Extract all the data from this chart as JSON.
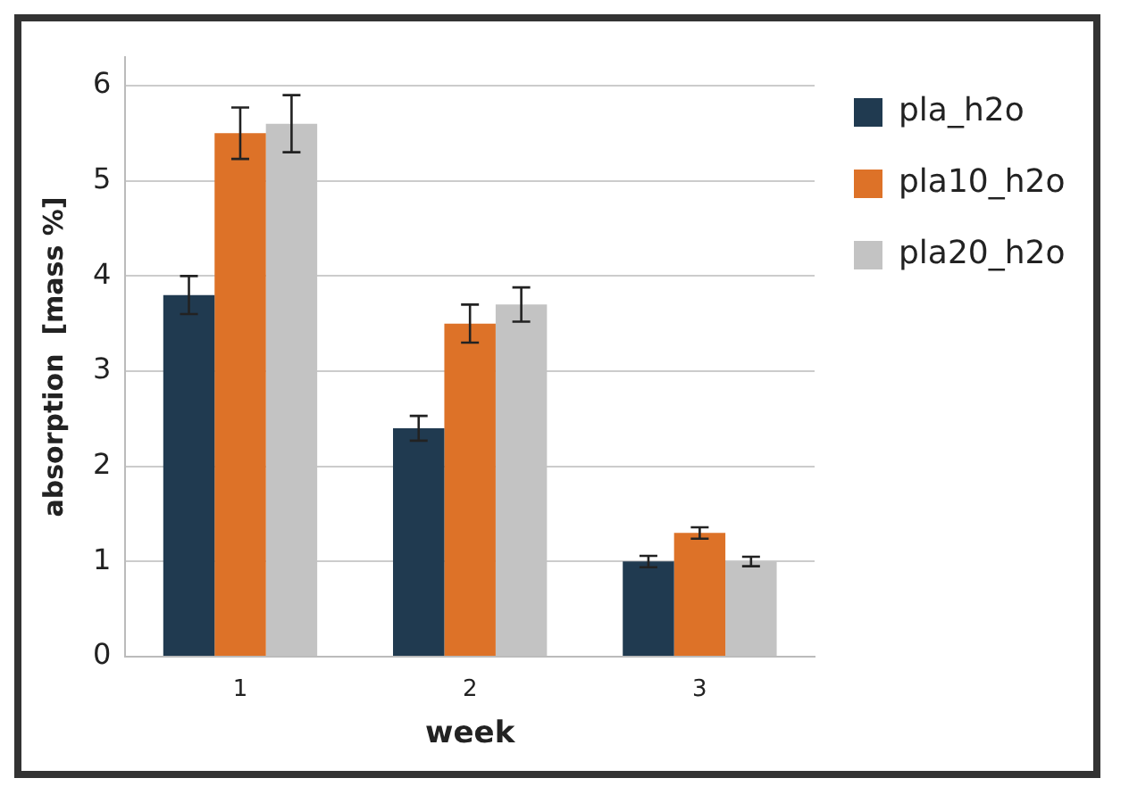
{
  "chart_data": {
    "type": "bar",
    "xlabel": "week",
    "ylabel": "absorption  [mass %]",
    "categories": [
      "1",
      "2",
      "3"
    ],
    "series": [
      {
        "name": "pla_h2o",
        "color": "#203a50",
        "values": [
          3.8,
          2.4,
          1.0
        ],
        "errors": [
          0.2,
          0.13,
          0.06
        ]
      },
      {
        "name": "pla10_h2o",
        "color": "#dd7228",
        "values": [
          5.5,
          3.5,
          1.3
        ],
        "errors": [
          0.27,
          0.2,
          0.06
        ]
      },
      {
        "name": "pla20_h2o",
        "color": "#c3c3c3",
        "values": [
          5.6,
          3.7,
          1.0
        ],
        "errors": [
          0.3,
          0.18,
          0.05
        ]
      }
    ],
    "ylim": [
      0,
      6.3
    ],
    "yticks": [
      0,
      1,
      2,
      3,
      4,
      5,
      6
    ],
    "grid": "y",
    "legend": "top right"
  }
}
